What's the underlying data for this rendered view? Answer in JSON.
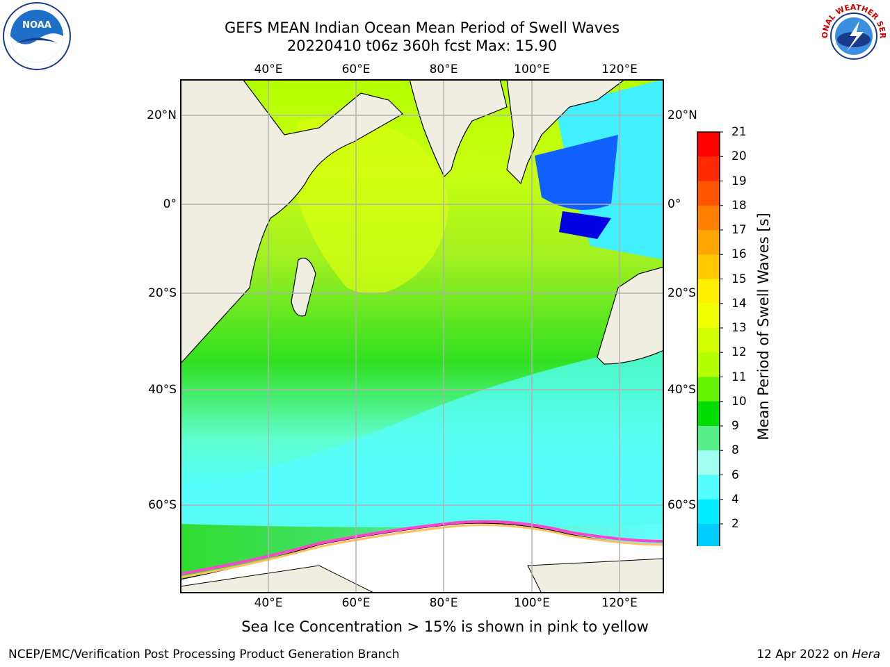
{
  "title": {
    "line1": "GEFS MEAN Indian Ocean Mean Period of Swell Waves",
    "line2": "20220410 t06z 360h fcst   Max: 15.90"
  },
  "logos": {
    "left": {
      "icon": "noaa-logo",
      "text": "NOAA"
    },
    "right": {
      "icon": "nws-logo",
      "text": "NATIONAL WEATHER SERVICE"
    }
  },
  "map": {
    "lon_labels": [
      "40°E",
      "60°E",
      "80°E",
      "100°E",
      "120°E"
    ],
    "lat_labels": [
      "20°N",
      "0°",
      "20°S",
      "40°S",
      "60°S"
    ],
    "colors": {
      "land": "#efeee0",
      "ocean_grid": "#b0b0b0"
    }
  },
  "colorbar": {
    "title": "Mean Period of Swell Waves [s]",
    "ticks": [
      "21",
      "20",
      "19",
      "18",
      "17",
      "16",
      "15",
      "14",
      "13",
      "12",
      "11",
      "10",
      "9",
      "8",
      "6",
      "4",
      "2"
    ],
    "colors_top_to_bottom": [
      "#ff0000",
      "#ff2a00",
      "#ff5500",
      "#ff7f00",
      "#ffa500",
      "#ffc800",
      "#fff000",
      "#f0ff00",
      "#d2ff00",
      "#b4ff00",
      "#64f000",
      "#00dc00",
      "#55ee88",
      "#a0fff0",
      "#55ffff",
      "#00eeff",
      "#00ccff",
      "#0088ff"
    ]
  },
  "note": "Sea Ice Concentration > 15% is shown in pink to yellow",
  "footer": {
    "left": "NCEP/EMC/Verification Post Processing Product Generation Branch",
    "right_date": "12 Apr 2022 on ",
    "right_host": "Hera"
  }
}
